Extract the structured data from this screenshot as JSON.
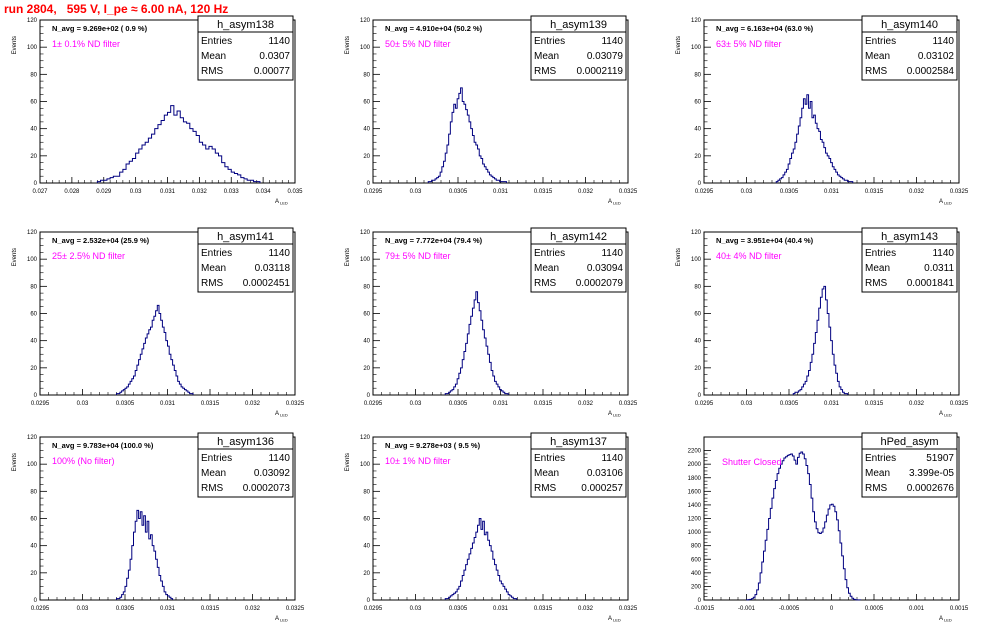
{
  "run_title": "run 2804,   595 V, I_pe ≈ 6.00 nA, 120 Hz",
  "chart_data": [
    {
      "type": "histogram",
      "name": "h_asym138",
      "stats": {
        "entries": "1140",
        "mean": "0.0307",
        "rms": "0.00077"
      },
      "navg": "N_avg = 9.269e+02 ( 0.9 %)",
      "note": "1± 0.1% ND filter",
      "ylabel": "Events",
      "xlabel": "A_LED",
      "xlim": [
        0.027,
        0.035
      ],
      "ylim": [
        0,
        120
      ],
      "xticks": [
        0.027,
        0.028,
        0.029,
        0.03,
        0.031,
        0.032,
        0.033,
        0.034,
        0.035
      ],
      "xtick_labels": [
        "0.027",
        "0.028",
        "0.029",
        "0.03",
        "0.031",
        "0.032",
        "0.033",
        "0.034",
        "0.035"
      ],
      "yticks": [
        0,
        20,
        40,
        60,
        80,
        100,
        120
      ],
      "ytick_labels": [
        "0",
        "20",
        "40",
        "60",
        "80",
        "100",
        "120"
      ],
      "bin_start": 0.0288,
      "bin_width": 0.0001,
      "counts": [
        1,
        2,
        2,
        3,
        4,
        5,
        5,
        8,
        10,
        14,
        16,
        18,
        22,
        25,
        28,
        30,
        33,
        36,
        40,
        43,
        46,
        50,
        52,
        57,
        50,
        53,
        48,
        45,
        44,
        40,
        38,
        35,
        30,
        28,
        25,
        27,
        25,
        22,
        20,
        15,
        12,
        10,
        8,
        7,
        6,
        4,
        3,
        2,
        2,
        1,
        1
      ]
    },
    {
      "type": "histogram",
      "name": "h_asym139",
      "stats": {
        "entries": "1140",
        "mean": "0.03079",
        "rms": "0.0002119"
      },
      "navg": "N_avg = 4.910e+04 (50.2 %)",
      "note": "50± 5% ND filter",
      "ylabel": "Events",
      "xlabel": "A_LED",
      "xlim": [
        0.0295,
        0.0325
      ],
      "ylim": [
        0,
        120
      ],
      "xticks": [
        0.0295,
        0.03,
        0.0305,
        0.031,
        0.0315,
        0.032,
        0.0325
      ],
      "xtick_labels": [
        "0.0295",
        "0.03",
        "0.0305",
        "0.031",
        "0.0315",
        "0.032",
        "0.0325"
      ],
      "yticks": [
        0,
        20,
        40,
        60,
        80,
        100,
        120
      ],
      "ytick_labels": [
        "0",
        "20",
        "40",
        "60",
        "80",
        "100",
        "120"
      ],
      "bin_start": 0.03015,
      "bin_width": 2e-05,
      "counts": [
        1,
        1,
        2,
        2,
        3,
        4,
        5,
        8,
        12,
        16,
        22,
        28,
        36,
        45,
        52,
        58,
        55,
        62,
        66,
        70,
        60,
        58,
        54,
        50,
        45,
        40,
        35,
        30,
        28,
        25,
        20,
        18,
        14,
        12,
        10,
        8,
        6,
        5,
        4,
        3,
        2,
        2,
        1,
        1,
        1,
        1
      ]
    },
    {
      "type": "histogram",
      "name": "h_asym140",
      "stats": {
        "entries": "1140",
        "mean": "0.03102",
        "rms": "0.0002584"
      },
      "navg": "N_avg = 6.163e+04 (63.0 %)",
      "note": "63± 5% ND filter",
      "ylabel": "Events",
      "xlabel": "A_LED",
      "xlim": [
        0.0295,
        0.0325
      ],
      "ylim": [
        0,
        120
      ],
      "xticks": [
        0.0295,
        0.03,
        0.0305,
        0.031,
        0.0315,
        0.032,
        0.0325
      ],
      "xtick_labels": [
        "0.0295",
        "0.03",
        "0.0305",
        "0.031",
        "0.0315",
        "0.032",
        "0.0325"
      ],
      "yticks": [
        0,
        20,
        40,
        60,
        80,
        100,
        120
      ],
      "ytick_labels": [
        "0",
        "20",
        "40",
        "60",
        "80",
        "100",
        "120"
      ],
      "bin_start": 0.03035,
      "bin_width": 2e-05,
      "counts": [
        1,
        2,
        3,
        4,
        6,
        8,
        10,
        14,
        18,
        22,
        25,
        30,
        36,
        42,
        48,
        55,
        62,
        58,
        65,
        55,
        60,
        48,
        50,
        44,
        40,
        38,
        32,
        30,
        26,
        22,
        20,
        18,
        15,
        12,
        10,
        8,
        6,
        5,
        4,
        3,
        2,
        2,
        1,
        1,
        1
      ]
    },
    {
      "type": "histogram",
      "name": "h_asym141",
      "stats": {
        "entries": "1140",
        "mean": "0.03118",
        "rms": "0.0002451"
      },
      "navg": "N_avg = 2.532e+04 (25.9 %)",
      "note": "25± 2.5% ND filter",
      "ylabel": "Events",
      "xlabel": "A_LED",
      "xlim": [
        0.0295,
        0.0325
      ],
      "ylim": [
        0,
        120
      ],
      "xticks": [
        0.0295,
        0.03,
        0.0305,
        0.031,
        0.0315,
        0.032,
        0.0325
      ],
      "xtick_labels": [
        "0.0295",
        "0.03",
        "0.0305",
        "0.031",
        "0.0315",
        "0.032",
        "0.0325"
      ],
      "yticks": [
        0,
        20,
        40,
        60,
        80,
        100,
        120
      ],
      "ytick_labels": [
        "0",
        "20",
        "40",
        "60",
        "80",
        "100",
        "120"
      ],
      "bin_start": 0.0304,
      "bin_width": 2e-05,
      "counts": [
        1,
        1,
        2,
        3,
        4,
        5,
        6,
        8,
        10,
        12,
        14,
        18,
        22,
        26,
        30,
        34,
        38,
        42,
        45,
        48,
        50,
        55,
        58,
        62,
        66,
        60,
        55,
        50,
        46,
        40,
        36,
        30,
        26,
        22,
        18,
        14,
        10,
        8,
        6,
        5,
        4,
        3,
        2,
        1,
        1
      ]
    },
    {
      "type": "histogram",
      "name": "h_asym142",
      "stats": {
        "entries": "1140",
        "mean": "0.03094",
        "rms": "0.0002079"
      },
      "navg": "N_avg = 7.772e+04 (79.4 %)",
      "note": "79± 5% ND filter",
      "ylabel": "Events",
      "xlabel": "A_LED",
      "xlim": [
        0.0295,
        0.0325
      ],
      "ylim": [
        0,
        120
      ],
      "xticks": [
        0.0295,
        0.03,
        0.0305,
        0.031,
        0.0315,
        0.032,
        0.0325
      ],
      "xtick_labels": [
        "0.0295",
        "0.03",
        "0.0305",
        "0.031",
        "0.0315",
        "0.032",
        "0.0325"
      ],
      "yticks": [
        0,
        20,
        40,
        60,
        80,
        100,
        120
      ],
      "ytick_labels": [
        "0",
        "20",
        "40",
        "60",
        "80",
        "100",
        "120"
      ],
      "bin_start": 0.03035,
      "bin_width": 2e-05,
      "counts": [
        1,
        1,
        2,
        3,
        4,
        6,
        8,
        12,
        16,
        20,
        26,
        32,
        38,
        45,
        52,
        58,
        64,
        70,
        76,
        68,
        62,
        55,
        48,
        42,
        36,
        30,
        24,
        18,
        14,
        10,
        8,
        6,
        4,
        3,
        2,
        1,
        1
      ]
    },
    {
      "type": "histogram",
      "name": "h_asym143",
      "stats": {
        "entries": "1140",
        "mean": "0.0311",
        "rms": "0.0001841"
      },
      "navg": "N_avg = 3.951e+04 (40.4 %)",
      "note": "40± 4% ND filter",
      "ylabel": "Events",
      "xlabel": "A_LED",
      "xlim": [
        0.0295,
        0.0325
      ],
      "ylim": [
        0,
        120
      ],
      "xticks": [
        0.0295,
        0.03,
        0.0305,
        0.031,
        0.0315,
        0.032,
        0.0325
      ],
      "xtick_labels": [
        "0.0295",
        "0.03",
        "0.0305",
        "0.031",
        "0.0315",
        "0.032",
        "0.0325"
      ],
      "yticks": [
        0,
        20,
        40,
        60,
        80,
        100,
        120
      ],
      "ytick_labels": [
        "0",
        "20",
        "40",
        "60",
        "80",
        "100",
        "120"
      ],
      "bin_start": 0.03055,
      "bin_width": 2e-05,
      "counts": [
        1,
        2,
        2,
        3,
        4,
        6,
        8,
        10,
        14,
        18,
        24,
        30,
        38,
        46,
        55,
        64,
        72,
        78,
        80,
        70,
        60,
        50,
        40,
        30,
        22,
        16,
        10,
        6,
        4,
        2,
        1,
        1
      ]
    },
    {
      "type": "histogram",
      "name": "h_asym136",
      "stats": {
        "entries": "1140",
        "mean": "0.03092",
        "rms": "0.0002073"
      },
      "navg": "N_avg = 9.783e+04 (100.0 %)",
      "note": "100% (No filter)",
      "ylabel": "Events",
      "xlabel": "A_LED",
      "xlim": [
        0.0295,
        0.0325
      ],
      "ylim": [
        0,
        120
      ],
      "xticks": [
        0.0295,
        0.03,
        0.0305,
        0.031,
        0.0315,
        0.032,
        0.0325
      ],
      "xtick_labels": [
        "0.0295",
        "0.03",
        "0.0305",
        "0.031",
        "0.0315",
        "0.032",
        "0.0325"
      ],
      "yticks": [
        0,
        20,
        40,
        60,
        80,
        100,
        120
      ],
      "ytick_labels": [
        "0",
        "20",
        "40",
        "60",
        "80",
        "100",
        "120"
      ],
      "bin_start": 0.0304,
      "bin_width": 2e-05,
      "counts": [
        1,
        1,
        2,
        4,
        6,
        10,
        16,
        22,
        30,
        40,
        50,
        58,
        66,
        60,
        65,
        55,
        62,
        50,
        58,
        45,
        48,
        40,
        36,
        30,
        24,
        18,
        14,
        10,
        6,
        4,
        3,
        2,
        1
      ]
    },
    {
      "type": "histogram",
      "name": "h_asym137",
      "stats": {
        "entries": "1140",
        "mean": "0.03106",
        "rms": "0.000257"
      },
      "navg": "N_avg = 9.278e+03 ( 9.5 %)",
      "note": "10± 1% ND filter",
      "ylabel": "Events",
      "xlabel": "A_LED",
      "xlim": [
        0.0295,
        0.0325
      ],
      "ylim": [
        0,
        120
      ],
      "xticks": [
        0.0295,
        0.03,
        0.0305,
        0.031,
        0.0315,
        0.032,
        0.0325
      ],
      "xtick_labels": [
        "0.0295",
        "0.03",
        "0.0305",
        "0.031",
        "0.0315",
        "0.032",
        "0.0325"
      ],
      "yticks": [
        0,
        20,
        40,
        60,
        80,
        100,
        120
      ],
      "ytick_labels": [
        "0",
        "20",
        "40",
        "60",
        "80",
        "100",
        "120"
      ],
      "bin_start": 0.03035,
      "bin_width": 2e-05,
      "counts": [
        1,
        1,
        2,
        3,
        4,
        5,
        6,
        8,
        10,
        14,
        18,
        22,
        26,
        30,
        34,
        38,
        42,
        46,
        50,
        55,
        60,
        52,
        58,
        48,
        50,
        44,
        40,
        36,
        30,
        26,
        22,
        18,
        14,
        12,
        10,
        8,
        6,
        4,
        3,
        2,
        1,
        1
      ]
    },
    {
      "type": "histogram",
      "name": "hPed_asym",
      "stats": {
        "entries": "51907",
        "mean": "3.399e-05",
        "rms": "0.0002676"
      },
      "navg": "",
      "note": "Shutter Closed",
      "ylabel": "",
      "xlabel": "A_LED",
      "xlim": [
        -0.0015,
        0.0015
      ],
      "ylim": [
        0,
        2400
      ],
      "xticks": [
        -0.0015,
        -0.001,
        -0.0005,
        0,
        0.0005,
        0.001,
        0.0015
      ],
      "xtick_labels": [
        "-0.0015",
        "-0.001",
        "-0.0005",
        "0",
        "0.0005",
        "0.001",
        "0.0015"
      ],
      "yticks": [
        0,
        200,
        400,
        600,
        800,
        1000,
        1200,
        1400,
        1600,
        1800,
        2000,
        2200
      ],
      "ytick_labels": [
        "0",
        "200",
        "400",
        "600",
        "800",
        "1000",
        "1200",
        "1400",
        "1600",
        "1800",
        "2000",
        "2200"
      ],
      "bin_start": -0.001,
      "bin_width": 2e-05,
      "counts": [
        2,
        5,
        10,
        20,
        40,
        80,
        150,
        250,
        400,
        560,
        720,
        880,
        1040,
        1200,
        1350,
        1500,
        1640,
        1760,
        1860,
        1940,
        2000,
        2050,
        2090,
        2110,
        2130,
        2140,
        2150,
        2120,
        2060,
        2000,
        2100,
        2160,
        2180,
        2150,
        2080,
        1980,
        1860,
        1700,
        1500,
        1300,
        1150,
        1050,
        990,
        980,
        1000,
        1060,
        1150,
        1250,
        1340,
        1400,
        1410,
        1380,
        1300,
        1180,
        1020,
        840,
        650,
        460,
        300,
        180,
        100,
        55,
        25,
        10,
        4,
        2,
        1
      ]
    }
  ]
}
